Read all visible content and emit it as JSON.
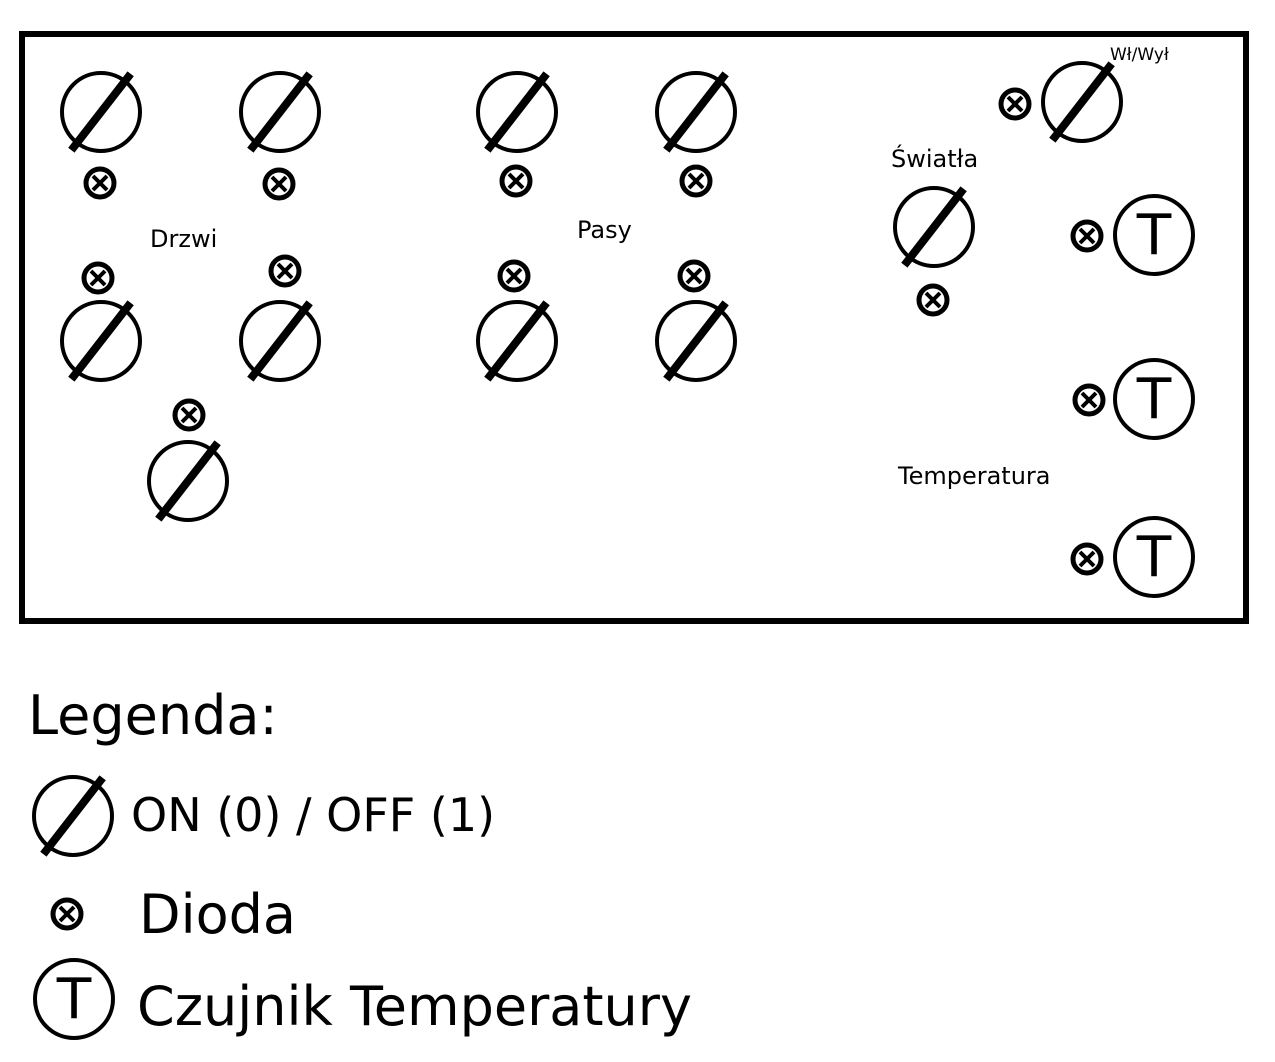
{
  "panel": {
    "labels": {
      "drzwi": "Drzwi",
      "pasy": "Pasy",
      "swiatla": "Światła",
      "wl_wyl": "Wł/Wył",
      "temperatura": "Temperatura"
    },
    "groups": [
      {
        "name": "drzwi",
        "switch_count": 5,
        "diode_count": 5
      },
      {
        "name": "pasy",
        "switch_count": 4,
        "diode_count": 4
      },
      {
        "name": "swiatla",
        "switch_count": 1,
        "diode_count": 1
      },
      {
        "name": "wl-wyl",
        "switch_count": 1,
        "diode_count": 1
      },
      {
        "name": "temperatura",
        "sensor_count": 3,
        "diode_count": 3
      }
    ],
    "symbol_glyphs": {
      "sensor": "T"
    },
    "colors": {
      "stroke": "#000000",
      "background": "#ffffff"
    }
  },
  "legend": {
    "title": "Legenda:",
    "items": [
      {
        "icon": "switch-icon",
        "label": "ON (0) / OFF (1)"
      },
      {
        "icon": "diode-icon",
        "label": "Dioda"
      },
      {
        "icon": "temperature-sensor-icon",
        "label": "Czujnik Temperatury"
      }
    ]
  }
}
